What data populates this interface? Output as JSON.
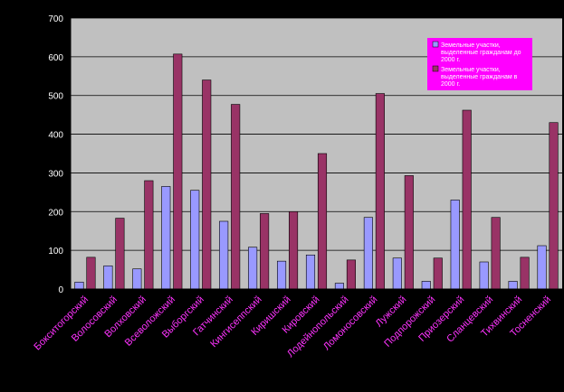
{
  "chart_data": {
    "type": "bar",
    "categories": [
      "Бокситогорский",
      "Волосовский",
      "Волховский",
      "Всеволожский",
      "Выборгский",
      "Гатчинский",
      "Кингисеппский",
      "Киришский",
      "Кировский",
      "Лодейнопольский",
      "Ломоносовский",
      "Лужский",
      "Подпорожский",
      "Приозерский",
      "Сланцевский",
      "Тихвинский",
      "Тосненский"
    ],
    "series": [
      {
        "name": "Земельные участки, выделенные гражданам до 2000 г.",
        "color": "#9999ff",
        "values": [
          18,
          60,
          52,
          265,
          255,
          175,
          108,
          72,
          88,
          15,
          185,
          80,
          20,
          230,
          70,
          20,
          112
        ]
      },
      {
        "name": "Земельные участки, выделенные гражданам в 2000 г.",
        "color": "#993366",
        "values": [
          82,
          183,
          280,
          607,
          540,
          477,
          195,
          200,
          350,
          75,
          505,
          293,
          80,
          462,
          185,
          82,
          430
        ]
      }
    ],
    "ylim": [
      0,
      700
    ],
    "yticks": [
      0,
      100,
      200,
      300,
      400,
      500,
      600,
      700
    ],
    "grid": true,
    "legend": "top-right",
    "colors": {
      "plot_bg": "#c0c0c0",
      "page_bg": "#000000",
      "legend_bg": "#ff00ff",
      "tick_text": "#ffffff",
      "category_text": "#ff33ff"
    }
  }
}
